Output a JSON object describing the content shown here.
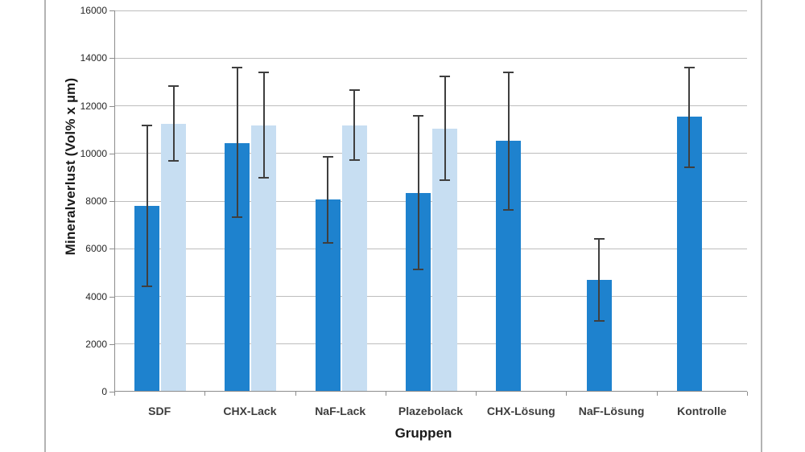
{
  "figure": {
    "background_color": "#ffffff",
    "frame_line_color": "#b3b3b3",
    "axis_line_color": "#8c8c8c",
    "gridline_color": "#bdbdbd"
  },
  "chart_data": {
    "type": "bar",
    "title": "",
    "xlabel": "Gruppen",
    "ylabel": "Mineralverlust (Vol% x µm)",
    "categories": [
      "SDF",
      "CHX-Lack",
      "NaF-Lack",
      "Plazebolack",
      "CHX-Lösung",
      "NaF-Lösung",
      "Kontrolle"
    ],
    "y_ticks": [
      16000,
      14000,
      12000,
      10000,
      8000,
      6000,
      4000,
      2000,
      0
    ],
    "ylim": [
      0,
      16000
    ],
    "grid": true,
    "legend_position": "none",
    "error_bar_color": "#3f3f3f",
    "series": [
      {
        "name": "dark-blue-series",
        "color": "#1e82ce",
        "values": [
          7750,
          10400,
          8050,
          8300,
          10500,
          4650,
          11500
        ],
        "error_high": [
          11200,
          13650,
          9900,
          11600,
          13450,
          6450,
          13650
        ],
        "error_low": [
          4400,
          7300,
          6200,
          5100,
          7600,
          2950,
          9400
        ]
      },
      {
        "name": "light-blue-series",
        "color": "#c7def2",
        "values": [
          11200,
          11150,
          11150,
          11000,
          null,
          null,
          null
        ],
        "error_high": [
          12850,
          13450,
          12700,
          13250,
          null,
          null,
          null
        ],
        "error_low": [
          9650,
          8950,
          9700,
          8850,
          null,
          null,
          null
        ]
      }
    ]
  }
}
